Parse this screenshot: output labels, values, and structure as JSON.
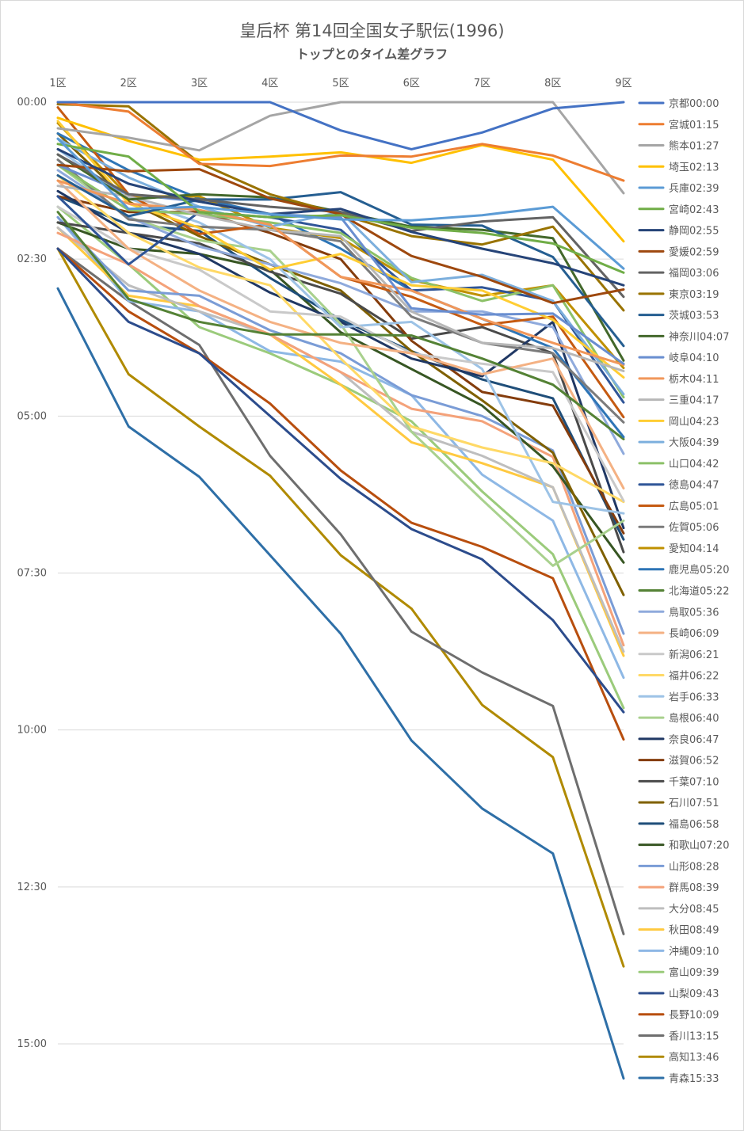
{
  "chart_data": {
    "type": "line",
    "title": "皇后杯 第14回全国女子駅伝(1996)",
    "subtitle": "トップとのタイム差グラフ",
    "categories": [
      "1区",
      "2区",
      "3区",
      "4区",
      "5区",
      "6区",
      "7区",
      "8区",
      "9区"
    ],
    "y_tick_labels": [
      "00:00",
      "02:30",
      "05:00",
      "07:30",
      "10:00",
      "12:30",
      "15:00"
    ],
    "y_ticks_seconds": [
      0,
      150,
      300,
      450,
      600,
      750,
      900
    ],
    "ylim_seconds": [
      0,
      960
    ],
    "y_reversed": true,
    "grid": true,
    "legend_position": "right",
    "series": [
      {
        "name": "京都00:00",
        "color": "#4472C4",
        "values": [
          0,
          0,
          0,
          0,
          27,
          45,
          29,
          6,
          0
        ]
      },
      {
        "name": "宮城01:15",
        "color": "#ED7D31",
        "values": [
          0,
          9,
          59,
          61,
          51,
          52,
          40,
          51,
          75
        ]
      },
      {
        "name": "熊本01:27",
        "color": "#A5A5A5",
        "values": [
          25,
          34,
          46,
          13,
          0,
          0,
          0,
          0,
          87
        ]
      },
      {
        "name": "埼玉02:13",
        "color": "#FFC000",
        "values": [
          15,
          37,
          55,
          52,
          48,
          58,
          41,
          55,
          133
        ]
      },
      {
        "name": "兵庫02:39",
        "color": "#5B9BD5",
        "values": [
          35,
          102,
          100,
          107,
          112,
          113,
          108,
          100,
          159
        ]
      },
      {
        "name": "宮崎02:43",
        "color": "#70AD47",
        "values": [
          40,
          52,
          105,
          110,
          108,
          120,
          125,
          135,
          163
        ]
      },
      {
        "name": "静岡02:55",
        "color": "#264478",
        "values": [
          45,
          78,
          95,
          107,
          102,
          124,
          140,
          154,
          175
        ]
      },
      {
        "name": "愛媛02:59",
        "color": "#9E480E",
        "values": [
          60,
          66,
          64,
          92,
          107,
          147,
          167,
          192,
          179
        ]
      },
      {
        "name": "福岡03:06",
        "color": "#636363",
        "values": [
          50,
          88,
          93,
          100,
          105,
          123,
          114,
          110,
          186
        ]
      },
      {
        "name": "東京03:19",
        "color": "#997300",
        "values": [
          2,
          4,
          58,
          88,
          107,
          128,
          136,
          119,
          199
        ]
      },
      {
        "name": "茨城03:53",
        "color": "#255E91",
        "values": [
          70,
          109,
          93,
          93,
          86,
          117,
          118,
          148,
          233
        ]
      },
      {
        "name": "神奈川04:07",
        "color": "#43682B",
        "values": [
          50,
          93,
          88,
          91,
          105,
          119,
          122,
          130,
          247
        ]
      },
      {
        "name": "岐阜04:10",
        "color": "#698ED0",
        "values": [
          60,
          88,
          95,
          107,
          110,
          197,
          203,
          202,
          250
        ]
      },
      {
        "name": "栃木04:11",
        "color": "#F1975A",
        "values": [
          75,
          97,
          103,
          117,
          167,
          180,
          207,
          230,
          251
        ]
      },
      {
        "name": "三重04:17",
        "color": "#B7B7B7",
        "values": [
          80,
          90,
          108,
          122,
          128,
          200,
          230,
          235,
          257
        ]
      },
      {
        "name": "岡山04:23",
        "color": "#FFCD33",
        "values": [
          18,
          97,
          120,
          160,
          145,
          175,
          180,
          208,
          263
        ]
      },
      {
        "name": "大阪04:39",
        "color": "#7CAFDD",
        "values": [
          35,
          72,
          100,
          119,
          105,
          172,
          165,
          190,
          279
        ]
      },
      {
        "name": "山口04:42",
        "color": "#8CC168",
        "values": [
          60,
          103,
          107,
          115,
          125,
          168,
          190,
          175,
          282
        ]
      },
      {
        "name": "徳島04:47",
        "color": "#2F5597",
        "values": [
          90,
          155,
          105,
          110,
          122,
          180,
          177,
          190,
          287
        ]
      },
      {
        "name": "広島05:01",
        "color": "#C55A11",
        "values": [
          5,
          88,
          126,
          117,
          167,
          186,
          213,
          205,
          301
        ]
      },
      {
        "name": "佐賀05:06",
        "color": "#7B7B7B",
        "values": [
          55,
          112,
          119,
          122,
          133,
          205,
          230,
          240,
          306
        ]
      },
      {
        "name": "愛知04:14",
        "color": "#BF9000",
        "values": [
          20,
          90,
          90,
          120,
          130,
          170,
          185,
          175,
          254
        ]
      },
      {
        "name": "鹿児島05:20",
        "color": "#2E75B6",
        "values": [
          30,
          65,
          92,
          107,
          140,
          180,
          207,
          235,
          320
        ]
      },
      {
        "name": "北海道05:22",
        "color": "#548235",
        "values": [
          105,
          188,
          210,
          222,
          222,
          223,
          245,
          270,
          322
        ]
      },
      {
        "name": "鳥取05:36",
        "color": "#8FAADC",
        "values": [
          65,
          110,
          138,
          155,
          173,
          200,
          200,
          215,
          336
        ]
      },
      {
        "name": "長崎06:09",
        "color": "#F4B183",
        "values": [
          75,
          140,
          180,
          210,
          230,
          240,
          260,
          245,
          369
        ]
      },
      {
        "name": "新潟06:21",
        "color": "#C9C9C9",
        "values": [
          100,
          140,
          160,
          200,
          205,
          240,
          250,
          258,
          381
        ]
      },
      {
        "name": "福井06:22",
        "color": "#FFD966",
        "values": [
          70,
          125,
          158,
          175,
          245,
          310,
          330,
          345,
          382
        ]
      },
      {
        "name": "岩手06:33",
        "color": "#9DC3E6",
        "values": [
          45,
          92,
          115,
          150,
          215,
          210,
          255,
          382,
          393
        ]
      },
      {
        "name": "島根06:40",
        "color": "#A9D18E",
        "values": [
          60,
          110,
          132,
          142,
          212,
          315,
          380,
          443,
          400
        ]
      },
      {
        "name": "奈良06:47",
        "color": "#203864",
        "values": [
          85,
          125,
          145,
          182,
          210,
          245,
          262,
          210,
          407
        ]
      },
      {
        "name": "滋賀06:52",
        "color": "#843C0C",
        "values": [
          90,
          105,
          105,
          125,
          150,
          228,
          277,
          290,
          412
        ]
      },
      {
        "name": "千葉07:10",
        "color": "#4A4A4A",
        "values": [
          115,
          125,
          135,
          162,
          183,
          226,
          215,
          240,
          430
        ]
      },
      {
        "name": "石川07:51",
        "color": "#7F6000",
        "values": [
          30,
          95,
          128,
          155,
          180,
          238,
          285,
          335,
          471
        ]
      },
      {
        "name": "福島06:58",
        "color": "#1F4E79",
        "values": [
          90,
          117,
          123,
          168,
          208,
          238,
          265,
          283,
          418
        ]
      },
      {
        "name": "和歌山07:20",
        "color": "#375623",
        "values": [
          115,
          140,
          145,
          160,
          220,
          255,
          290,
          348,
          440
        ]
      },
      {
        "name": "山形08:28",
        "color": "#7A9CD6",
        "values": [
          110,
          180,
          185,
          218,
          240,
          280,
          300,
          333,
          508
        ]
      },
      {
        "name": "群馬08:39",
        "color": "#F4A27A",
        "values": [
          125,
          155,
          195,
          222,
          258,
          293,
          305,
          339,
          519
        ]
      },
      {
        "name": "大分08:45",
        "color": "#BEBEBE",
        "values": [
          120,
          175,
          200,
          222,
          258,
          315,
          338,
          368,
          525
        ]
      },
      {
        "name": "秋田08:49",
        "color": "#FFC940",
        "values": [
          120,
          185,
          195,
          222,
          270,
          325,
          345,
          368,
          529
        ]
      },
      {
        "name": "沖縄09:10",
        "color": "#8EB8E5",
        "values": [
          110,
          190,
          200,
          238,
          248,
          280,
          356,
          400,
          550
        ]
      },
      {
        "name": "富山09:39",
        "color": "#9BCB7B",
        "values": [
          100,
          155,
          215,
          240,
          270,
          305,
          372,
          432,
          579
        ]
      },
      {
        "name": "山梨09:43",
        "color": "#2C4C8C",
        "values": [
          140,
          210,
          240,
          300,
          360,
          408,
          437,
          495,
          583
        ]
      },
      {
        "name": "長野10:09",
        "color": "#B84E0E",
        "values": [
          140,
          200,
          240,
          288,
          352,
          402,
          425,
          455,
          609
        ]
      },
      {
        "name": "香川13:15",
        "color": "#6E6E6E",
        "values": [
          140,
          190,
          232,
          338,
          413,
          506,
          545,
          577,
          795
        ]
      },
      {
        "name": "高知13:46",
        "color": "#B08A00",
        "values": [
          140,
          260,
          310,
          357,
          433,
          484,
          576,
          626,
          826
        ]
      },
      {
        "name": "青森15:33",
        "color": "#2E6FA7",
        "values": [
          178,
          310,
          358,
          433,
          508,
          610,
          675,
          718,
          933
        ]
      }
    ]
  }
}
